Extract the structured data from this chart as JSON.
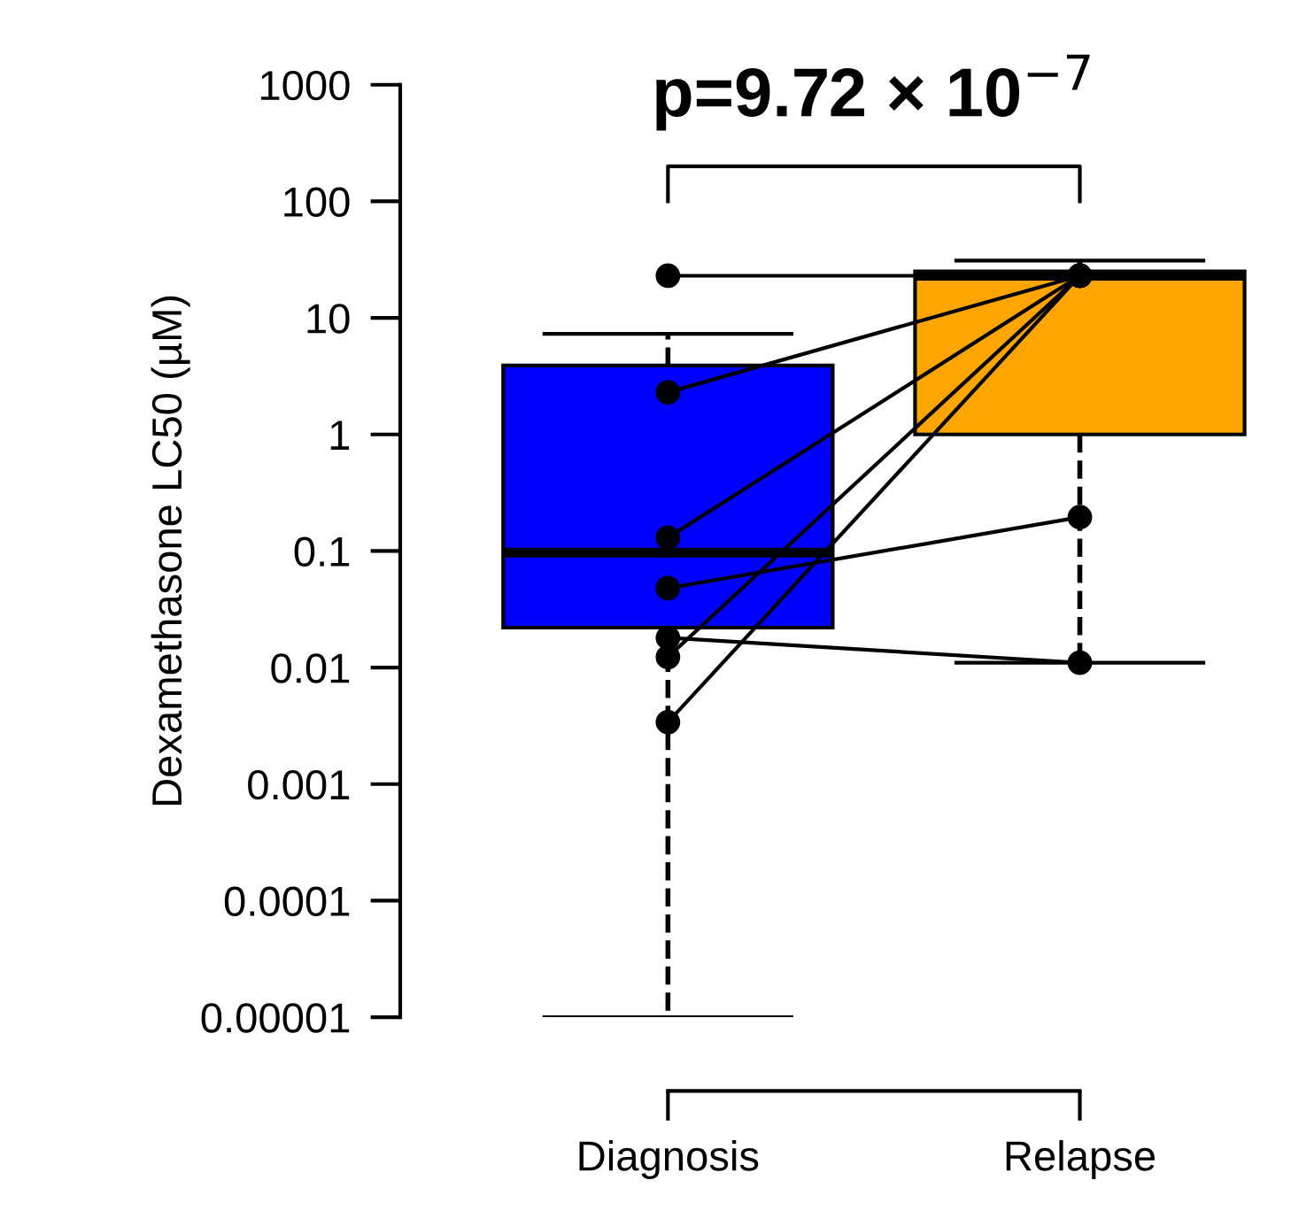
{
  "chart_data": {
    "type": "box",
    "ylabel": "Dexamethasone LC50 (µM)",
    "categories": [
      "Diagnosis",
      "Relapse"
    ],
    "colors": [
      "#0000ff",
      "#ffa500"
    ],
    "boxes": [
      {
        "low": 1e-05,
        "q1": 0.022,
        "median": 0.097,
        "q3": 3.9,
        "high": 7.3
      },
      {
        "low": 0.011,
        "q1": 1.0,
        "median": 23,
        "q3": 25,
        "high": 31
      }
    ],
    "series": [
      {
        "type": "line",
        "x": [
          "Diagnosis",
          "Relapse"
        ],
        "values": [
          23,
          23
        ],
        "color": "#000000"
      },
      {
        "type": "line",
        "x": [
          "Diagnosis",
          "Relapse"
        ],
        "values": [
          2.3,
          23
        ],
        "color": "#000000"
      },
      {
        "type": "line",
        "x": [
          "Diagnosis",
          "Relapse"
        ],
        "values": [
          0.13,
          23
        ],
        "color": "#000000"
      },
      {
        "type": "line",
        "x": [
          "Diagnosis",
          "Relapse"
        ],
        "values": [
          0.048,
          0.195
        ],
        "color": "#000000"
      },
      {
        "type": "line",
        "x": [
          "Diagnosis",
          "Relapse"
        ],
        "values": [
          0.018,
          0.011
        ],
        "color": "#000000"
      },
      {
        "type": "line",
        "x": [
          "Diagnosis",
          "Relapse"
        ],
        "values": [
          0.0123,
          23
        ],
        "color": "#000000"
      },
      {
        "type": "line",
        "x": [
          "Diagnosis",
          "Relapse"
        ],
        "values": [
          0.0034,
          23
        ],
        "color": "#000000"
      }
    ],
    "marker": "circle",
    "line_style": "solid",
    "log": "y",
    "ylim": [
      1e-05,
      1000
    ],
    "yticks": [
      1000,
      100,
      10,
      1,
      0.1,
      0.01,
      0.001,
      0.0001,
      {
        "value": 1e-05,
        "label": "0.00001"
      }
    ],
    "grid": false,
    "legend": false,
    "annotations": [
      "p=9.72 × 10$^{−7}$"
    ]
  }
}
